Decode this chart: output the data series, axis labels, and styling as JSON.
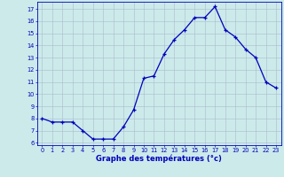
{
  "x": [
    0,
    1,
    2,
    3,
    4,
    5,
    6,
    7,
    8,
    9,
    10,
    11,
    12,
    13,
    14,
    15,
    16,
    17,
    18,
    19,
    20,
    21,
    22,
    23
  ],
  "y": [
    8.0,
    7.7,
    7.7,
    7.7,
    7.0,
    6.3,
    6.3,
    6.3,
    7.3,
    8.7,
    11.3,
    11.5,
    13.3,
    14.5,
    15.3,
    16.3,
    16.3,
    17.2,
    15.3,
    14.7,
    13.7,
    13.0,
    11.0,
    10.5
  ],
  "ylim": [
    5.8,
    17.6
  ],
  "yticks": [
    6,
    7,
    8,
    9,
    10,
    11,
    12,
    13,
    14,
    15,
    16,
    17
  ],
  "xlim": [
    -0.5,
    23.5
  ],
  "xticks": [
    0,
    1,
    2,
    3,
    4,
    5,
    6,
    7,
    8,
    9,
    10,
    11,
    12,
    13,
    14,
    15,
    16,
    17,
    18,
    19,
    20,
    21,
    22,
    23
  ],
  "xlabel": "Graphe des températures (°c)",
  "line_color": "#0000bb",
  "marker": "+",
  "bg_color": "#cceaea",
  "grid_color": "#aabbcc",
  "axis_color": "#0000bb",
  "label_color": "#0000bb",
  "tick_label_color": "#0000bb",
  "fig_bg": "#cceaea"
}
